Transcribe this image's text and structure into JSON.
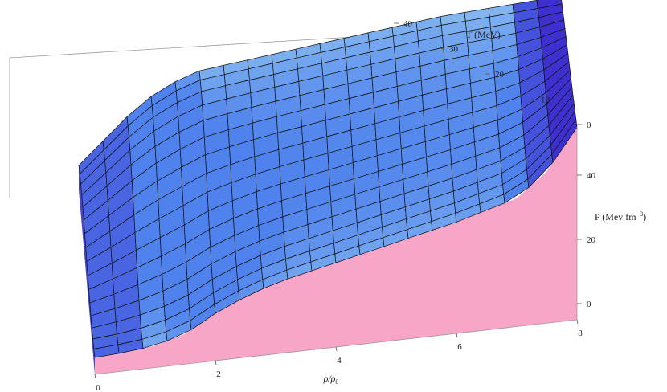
{
  "chart_data": {
    "type": "surface3d",
    "title": "",
    "x_axis": {
      "label_base": "ρ/ρ",
      "label_sub": "0",
      "ticks": [
        "0",
        "2",
        "4",
        "6",
        "8"
      ],
      "range": [
        0,
        8
      ]
    },
    "y_axis": {
      "label": "T (MeV)",
      "ticks": [
        "0",
        "10",
        "20",
        "30",
        "40"
      ],
      "range": [
        0,
        40
      ]
    },
    "z_axis": {
      "label_base": "P (Mev fm",
      "label_sup": "−3",
      "label_end": ")",
      "ticks": [
        "0",
        "20",
        "40"
      ],
      "range": [
        -5,
        55
      ]
    },
    "mesh": {
      "rho_divisions": 20,
      "T_divisions": 16
    },
    "pressure_profile": {
      "rho": [
        0,
        0.5,
        1,
        1.5,
        2,
        2.5,
        3,
        3.5,
        4,
        4.5,
        5,
        5.5,
        6,
        6.5,
        7,
        7.5,
        8
      ],
      "P_at_T0": [
        0,
        0.5,
        1.5,
        4,
        9,
        13,
        16,
        18,
        20,
        22,
        24,
        26,
        28,
        30.5,
        33,
        40,
        52
      ],
      "P_at_T40": [
        20,
        28,
        36,
        41,
        44,
        45,
        46,
        47,
        48,
        49,
        50,
        51,
        52,
        52.5,
        53,
        53.5,
        54
      ]
    },
    "colors": {
      "surface_light": "#8dc0f2",
      "surface_mid": "#4f82ec",
      "surface_dark": "#3d2fcf",
      "mesh_line": "#111111",
      "side_face": "#f7a6c8",
      "bounding_box": "#9a9a9a"
    },
    "grid": false,
    "legend": "none"
  }
}
